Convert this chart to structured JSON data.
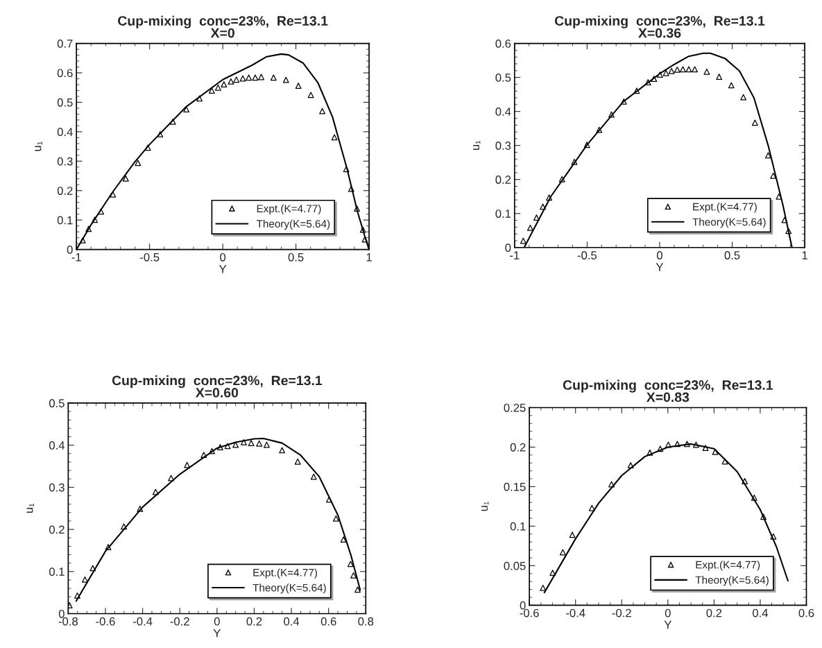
{
  "chart_data": [
    {
      "type": "line",
      "title": "Cup-mixing  conc=23%,  Re=13.1\nX=0",
      "xlabel": "Y",
      "ylabel": "u₁",
      "xlim": [
        -1,
        1
      ],
      "xticks": [
        -1,
        -0.5,
        0,
        0.5,
        1
      ],
      "ylim": [
        0,
        0.7
      ],
      "yticks": [
        0,
        0.1,
        0.2,
        0.3,
        0.4,
        0.5,
        0.6,
        0.7
      ],
      "legend": "bottom right",
      "grid": false,
      "series": [
        {
          "name": "Expt.(K=4.77)",
          "type": "scatter",
          "marker": "triangle",
          "color": "#000000",
          "x": [
            -0.957,
            -0.917,
            -0.875,
            -0.832,
            -0.751,
            -0.663,
            -0.58,
            -0.512,
            -0.428,
            -0.341,
            -0.249,
            -0.159,
            -0.075,
            -0.032,
            0.008,
            0.056,
            0.093,
            0.137,
            0.178,
            0.222,
            0.263,
            0.347,
            0.432,
            0.517,
            0.602,
            0.68,
            0.763,
            0.844,
            0.878,
            0.917,
            0.958,
            0.971
          ],
          "values": [
            0.031,
            0.07,
            0.101,
            0.129,
            0.187,
            0.241,
            0.294,
            0.346,
            0.391,
            0.434,
            0.476,
            0.513,
            0.54,
            0.55,
            0.561,
            0.571,
            0.577,
            0.581,
            0.584,
            0.584,
            0.586,
            0.584,
            0.576,
            0.556,
            0.525,
            0.47,
            0.381,
            0.273,
            0.206,
            0.139,
            0.067,
            0.034
          ]
        },
        {
          "name": "Theory(K=5.64)",
          "marker": "none",
          "line_style": "solid",
          "color": "#000000",
          "x": [
            -1,
            -0.9,
            -0.75,
            -0.6,
            -0.5,
            -0.25,
            0,
            0.2,
            0.3,
            0.4,
            0.45,
            0.55,
            0.65,
            0.75,
            0.85,
            0.92,
            0.97,
            1
          ],
          "values": [
            0,
            0.084,
            0.197,
            0.298,
            0.357,
            0.485,
            0.577,
            0.626,
            0.655,
            0.664,
            0.661,
            0.633,
            0.567,
            0.45,
            0.273,
            0.13,
            0.046,
            0
          ]
        }
      ]
    },
    {
      "type": "line",
      "title": "Cup-mixing  conc=23%,  Re=13.1\nX=0.36",
      "xlabel": "Y",
      "ylabel": "u₁",
      "xlim": [
        -1,
        1
      ],
      "xticks": [
        -1,
        -0.5,
        0,
        0.5,
        1
      ],
      "ylim": [
        0,
        0.6
      ],
      "yticks": [
        0,
        0.1,
        0.2,
        0.3,
        0.4,
        0.5,
        0.6
      ],
      "legend": "bottom right",
      "grid": false,
      "series": [
        {
          "name": "Expt.(K=4.77)",
          "type": "scatter",
          "marker": "triangle",
          "color": "#000000",
          "x": [
            -0.94,
            -0.892,
            -0.849,
            -0.805,
            -0.762,
            -0.673,
            -0.588,
            -0.501,
            -0.417,
            -0.332,
            -0.247,
            -0.158,
            -0.08,
            -0.039,
            0.002,
            0.044,
            0.082,
            0.121,
            0.16,
            0.201,
            0.242,
            0.325,
            0.41,
            0.494,
            0.577,
            0.657,
            0.748,
            0.783,
            0.822,
            0.861,
            0.888
          ],
          "values": [
            0.02,
            0.058,
            0.088,
            0.12,
            0.147,
            0.201,
            0.252,
            0.302,
            0.346,
            0.391,
            0.429,
            0.461,
            0.486,
            0.496,
            0.508,
            0.513,
            0.519,
            0.523,
            0.524,
            0.524,
            0.524,
            0.517,
            0.502,
            0.477,
            0.442,
            0.367,
            0.271,
            0.211,
            0.15,
            0.081,
            0.049
          ]
        },
        {
          "name": "Theory(K=5.64)",
          "marker": "none",
          "line_style": "solid",
          "color": "#000000",
          "x": [
            -0.934,
            -0.75,
            -0.5,
            -0.25,
            0,
            0.1,
            0.2,
            0.3,
            0.35,
            0.45,
            0.55,
            0.65,
            0.75,
            0.85,
            0.912
          ],
          "values": [
            0,
            0.15,
            0.302,
            0.429,
            0.511,
            0.538,
            0.562,
            0.571,
            0.571,
            0.556,
            0.519,
            0.44,
            0.297,
            0.124,
            0
          ]
        }
      ]
    },
    {
      "type": "line",
      "title": "Cup-mixing  conc=23%,  Re=13.1\nX=0.60",
      "xlabel": "Y",
      "ylabel": "u₁",
      "xlim": [
        -0.8,
        0.8
      ],
      "xticks": [
        -0.8,
        -0.6,
        -0.4,
        -0.2,
        0,
        0.2,
        0.4,
        0.6,
        0.8
      ],
      "ylim": [
        0,
        0.5
      ],
      "yticks": [
        0,
        0.1,
        0.2,
        0.3,
        0.4,
        0.5
      ],
      "legend": "bottom right",
      "grid": false,
      "series": [
        {
          "name": "Expt.(K=4.77)",
          "type": "scatter",
          "marker": "triangle",
          "color": "#000000",
          "x": [
            -0.793,
            -0.751,
            -0.71,
            -0.668,
            -0.585,
            -0.501,
            -0.414,
            -0.33,
            -0.247,
            -0.161,
            -0.071,
            -0.027,
            0.017,
            0.057,
            0.1,
            0.144,
            0.184,
            0.227,
            0.267,
            0.35,
            0.434,
            0.52,
            0.603,
            0.64,
            0.68,
            0.718,
            0.734,
            0.756
          ],
          "values": [
            0.02,
            0.043,
            0.081,
            0.108,
            0.158,
            0.207,
            0.249,
            0.289,
            0.322,
            0.353,
            0.377,
            0.386,
            0.395,
            0.398,
            0.401,
            0.407,
            0.405,
            0.404,
            0.401,
            0.388,
            0.361,
            0.325,
            0.271,
            0.226,
            0.176,
            0.118,
            0.091,
            0.057
          ]
        },
        {
          "name": "Theory(K=5.64)",
          "marker": "none",
          "line_style": "solid",
          "color": "#000000",
          "x": [
            -0.757,
            -0.6,
            -0.4,
            -0.2,
            0,
            0.1,
            0.2,
            0.25,
            0.35,
            0.45,
            0.55,
            0.65,
            0.72,
            0.77
          ],
          "values": [
            0.03,
            0.148,
            0.253,
            0.331,
            0.393,
            0.407,
            0.415,
            0.416,
            0.405,
            0.376,
            0.325,
            0.234,
            0.139,
            0.056
          ]
        }
      ]
    },
    {
      "type": "line",
      "title": "Cup-mixing  conc=23%,  Re=13.1\nX=0.83",
      "xlabel": "Y",
      "ylabel": "u₁",
      "xlim": [
        -0.6,
        0.6
      ],
      "xticks": [
        -0.6,
        -0.4,
        -0.2,
        0,
        0.2,
        0.4,
        0.6
      ],
      "ylim": [
        0,
        0.25
      ],
      "yticks": [
        0,
        0.05,
        0.1,
        0.15,
        0.2,
        0.25
      ],
      "legend": "bottom right",
      "grid": false,
      "series": [
        {
          "name": "Expt.(K=4.77)",
          "type": "scatter",
          "marker": "triangle",
          "color": "#000000",
          "x": [
            -0.541,
            -0.499,
            -0.455,
            -0.414,
            -0.329,
            -0.244,
            -0.161,
            -0.078,
            -0.033,
            0.002,
            0.041,
            0.083,
            0.122,
            0.163,
            0.205,
            0.247,
            0.333,
            0.374,
            0.414,
            0.457
          ],
          "values": [
            0.022,
            0.041,
            0.067,
            0.089,
            0.123,
            0.153,
            0.177,
            0.193,
            0.198,
            0.203,
            0.204,
            0.204,
            0.203,
            0.199,
            0.194,
            0.182,
            0.157,
            0.136,
            0.112,
            0.087
          ]
        },
        {
          "name": "Theory(K=5.64)",
          "marker": "none",
          "line_style": "solid",
          "color": "#000000",
          "x": [
            -0.535,
            -0.4,
            -0.3,
            -0.2,
            -0.1,
            0,
            0.1,
            0.2,
            0.3,
            0.4,
            0.47,
            0.52
          ],
          "values": [
            0.016,
            0.084,
            0.129,
            0.164,
            0.188,
            0.2,
            0.204,
            0.198,
            0.169,
            0.121,
            0.074,
            0.031
          ]
        }
      ]
    }
  ]
}
